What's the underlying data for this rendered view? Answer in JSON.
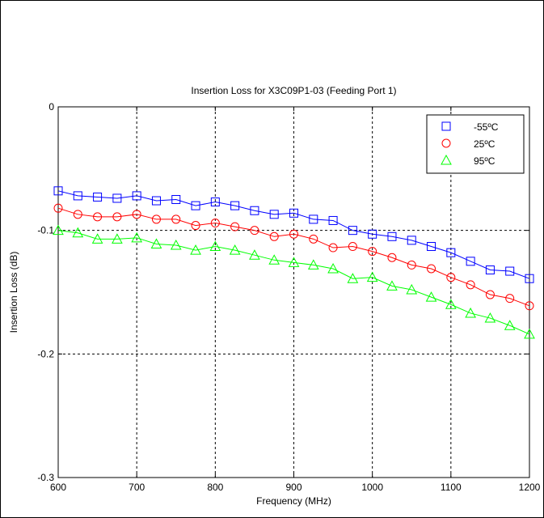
{
  "chart_data": {
    "type": "line",
    "title": "Insertion Loss for X3C09P1-03 (Feeding Port 1)",
    "xlabel": "Frequency (MHz)",
    "ylabel": "Insertion Loss (dB)",
    "xlim": [
      600,
      1200
    ],
    "ylim": [
      -0.3,
      0
    ],
    "xticks": [
      600,
      700,
      800,
      900,
      1000,
      1100,
      1200
    ],
    "yticks": [
      0,
      -0.1,
      -0.2,
      -0.3
    ],
    "xtick_labels": [
      "600",
      "700",
      "800",
      "900",
      "1000",
      "1100",
      "1200"
    ],
    "ytick_labels": [
      "0",
      "-0.1",
      "-0.2",
      "-0.3"
    ],
    "grid": true,
    "grid_style": "dotted",
    "legend_position": "top-right",
    "x": [
      600,
      625,
      650,
      675,
      700,
      725,
      750,
      775,
      800,
      825,
      850,
      875,
      900,
      925,
      950,
      975,
      1000,
      1025,
      1050,
      1075,
      1100,
      1125,
      1150,
      1175,
      1200
    ],
    "series": [
      {
        "name": "-55ºC",
        "color": "#0000ff",
        "marker": "square",
        "values": [
          -0.068,
          -0.072,
          -0.073,
          -0.074,
          -0.072,
          -0.076,
          -0.075,
          -0.08,
          -0.077,
          -0.08,
          -0.084,
          -0.087,
          -0.086,
          -0.091,
          -0.092,
          -0.1,
          -0.103,
          -0.105,
          -0.108,
          -0.113,
          -0.118,
          -0.125,
          -0.132,
          -0.133,
          -0.139
        ]
      },
      {
        "name": "25ºC",
        "color": "#ff0000",
        "marker": "circle",
        "values": [
          -0.082,
          -0.087,
          -0.089,
          -0.089,
          -0.087,
          -0.091,
          -0.091,
          -0.096,
          -0.094,
          -0.097,
          -0.1,
          -0.105,
          -0.103,
          -0.107,
          -0.114,
          -0.113,
          -0.117,
          -0.122,
          -0.128,
          -0.131,
          -0.138,
          -0.144,
          -0.152,
          -0.155,
          -0.161
        ]
      },
      {
        "name": "95ºC",
        "color": "#00ff00",
        "marker": "triangle",
        "values": [
          -0.1,
          -0.102,
          -0.107,
          -0.107,
          -0.106,
          -0.111,
          -0.112,
          -0.116,
          -0.113,
          -0.116,
          -0.12,
          -0.124,
          -0.126,
          -0.128,
          -0.131,
          -0.139,
          -0.138,
          -0.145,
          -0.148,
          -0.154,
          -0.16,
          -0.167,
          -0.171,
          -0.177,
          -0.184
        ]
      }
    ]
  }
}
